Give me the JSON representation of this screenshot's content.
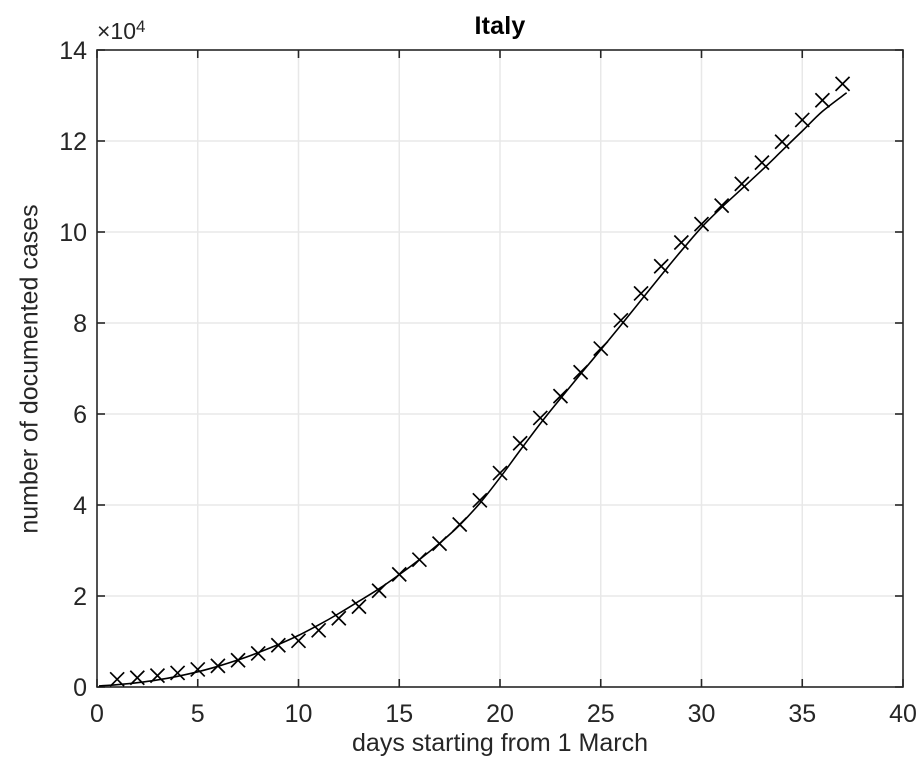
{
  "title": "Italy",
  "chart_data": {
    "type": "scatter",
    "title": "Italy",
    "xlabel": "days starting from 1 March",
    "ylabel": "number of documented cases",
    "y_axis_multiplier": {
      "base": "×10",
      "exponent": "4"
    },
    "xlim": [
      0,
      40
    ],
    "ylim": [
      0,
      140000
    ],
    "xticks": [
      0,
      5,
      10,
      15,
      20,
      25,
      30,
      35,
      40
    ],
    "xtick_labels": [
      "0",
      "5",
      "10",
      "15",
      "20",
      "25",
      "30",
      "35",
      "40"
    ],
    "yticks": [
      0,
      20000,
      40000,
      60000,
      80000,
      100000,
      120000,
      140000
    ],
    "ytick_labels": [
      "0",
      "2",
      "4",
      "6",
      "8",
      "10",
      "12",
      "14"
    ],
    "grid": true,
    "legend": null,
    "colors": {
      "data": "#000000",
      "axis": "#262626",
      "grid": "#e8e8e8",
      "background": "#ffffff"
    },
    "series": [
      {
        "name": "documented cases",
        "type": "scatter",
        "marker": "x",
        "x": [
          1,
          2,
          3,
          4,
          5,
          6,
          7,
          8,
          9,
          10,
          11,
          12,
          13,
          14,
          15,
          16,
          17,
          18,
          19,
          20,
          21,
          22,
          23,
          24,
          25,
          26,
          27,
          28,
          29,
          30,
          31,
          32,
          33,
          34,
          35,
          36,
          37
        ],
        "y": [
          1694,
          2036,
          2502,
          3089,
          3858,
          4636,
          5883,
          7375,
          9172,
          10149,
          12462,
          15113,
          17660,
          21157,
          24747,
          27980,
          31506,
          35713,
          41035,
          47021,
          53578,
          59138,
          63927,
          69176,
          74386,
          80589,
          86498,
          92472,
          97689,
          101739,
          105792,
          110574,
          115242,
          119827,
          124632,
          128948,
          132547
        ]
      },
      {
        "name": "fitted model curve",
        "type": "line",
        "points": [
          [
            0.1,
            250
          ],
          [
            1,
            500
          ],
          [
            2,
            950
          ],
          [
            3,
            1550
          ],
          [
            4,
            2350
          ],
          [
            5,
            3350
          ],
          [
            6,
            4550
          ],
          [
            7,
            5950
          ],
          [
            8,
            7550
          ],
          [
            9,
            9350
          ],
          [
            10,
            11350
          ],
          [
            11,
            13650
          ],
          [
            12,
            16150
          ],
          [
            13,
            18850
          ],
          [
            14,
            21600
          ],
          [
            15,
            24700
          ],
          [
            16,
            28000
          ],
          [
            17,
            31600
          ],
          [
            18,
            35600
          ],
          [
            19,
            40400
          ],
          [
            20,
            46000
          ],
          [
            21,
            52000
          ],
          [
            22,
            57900
          ],
          [
            23,
            63400
          ],
          [
            24,
            68800
          ],
          [
            25,
            74100
          ],
          [
            26,
            79500
          ],
          [
            27,
            85000
          ],
          [
            28,
            90500
          ],
          [
            29,
            95900
          ],
          [
            30,
            101000
          ],
          [
            31,
            105400
          ],
          [
            32,
            109500
          ],
          [
            33,
            113600
          ],
          [
            34,
            117900
          ],
          [
            35,
            122200
          ],
          [
            36,
            126500
          ],
          [
            37.2,
            130600
          ]
        ]
      }
    ]
  }
}
